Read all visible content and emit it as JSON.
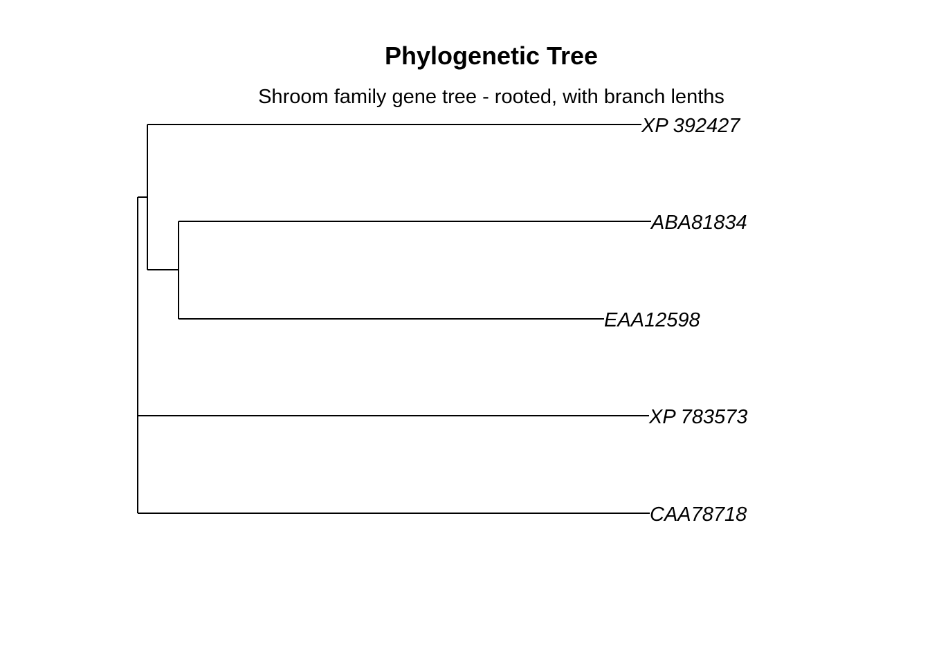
{
  "figure": {
    "title": "Phylogenetic Tree",
    "subtitle": "Shroom family gene tree - rooted, with branch lenths"
  },
  "tree": {
    "rooted": true,
    "line_color": "#000000",
    "label_style": "italic",
    "tips": [
      {
        "label": "XP 392427"
      },
      {
        "label": "ABA81834"
      },
      {
        "label": "EAA12598"
      },
      {
        "label": "XP 783573"
      },
      {
        "label": "CAA78718"
      }
    ]
  }
}
